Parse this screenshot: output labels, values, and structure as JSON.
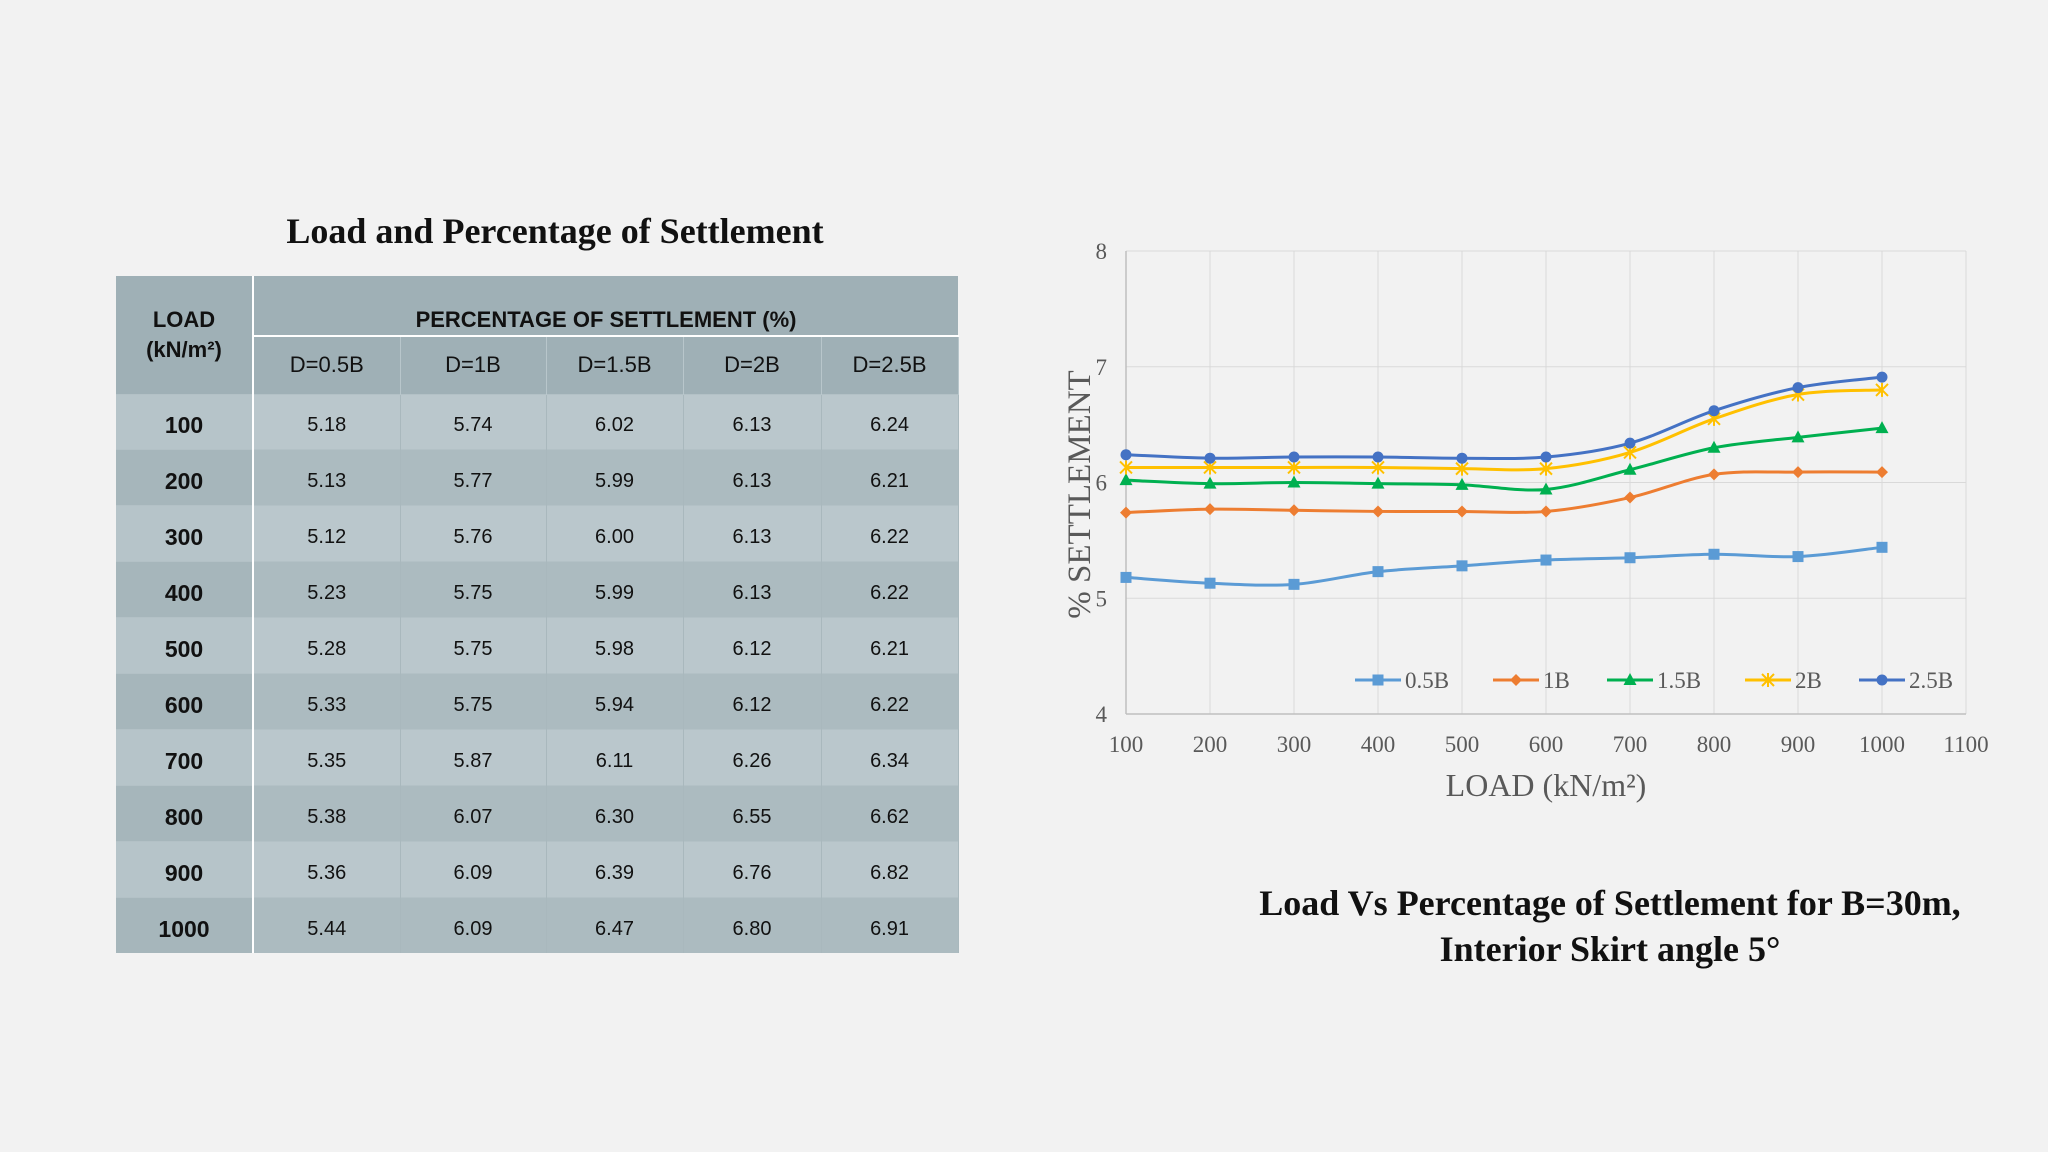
{
  "table": {
    "title": "Load and Percentage of Settlement",
    "load_header_line1": "LOAD",
    "load_header_line2": "(kN/m²)",
    "group_header": "PERCENTAGE OF SETTLEMENT (%)",
    "columns": [
      "D=0.5B",
      "D=1B",
      "D=1.5B",
      "D=2B",
      "D=2.5B"
    ],
    "rows": [
      {
        "load": "100",
        "values": [
          "5.18",
          "5.74",
          "6.02",
          "6.13",
          "6.24"
        ]
      },
      {
        "load": "200",
        "values": [
          "5.13",
          "5.77",
          "5.99",
          "6.13",
          "6.21"
        ]
      },
      {
        "load": "300",
        "values": [
          "5.12",
          "5.76",
          "6.00",
          "6.13",
          "6.22"
        ]
      },
      {
        "load": "400",
        "values": [
          "5.23",
          "5.75",
          "5.99",
          "6.13",
          "6.22"
        ]
      },
      {
        "load": "500",
        "values": [
          "5.28",
          "5.75",
          "5.98",
          "6.12",
          "6.21"
        ]
      },
      {
        "load": "600",
        "values": [
          "5.33",
          "5.75",
          "5.94",
          "6.12",
          "6.22"
        ]
      },
      {
        "load": "700",
        "values": [
          "5.35",
          "5.87",
          "6.11",
          "6.26",
          "6.34"
        ]
      },
      {
        "load": "800",
        "values": [
          "5.38",
          "6.07",
          "6.30",
          "6.55",
          "6.62"
        ]
      },
      {
        "load": "900",
        "values": [
          "5.36",
          "6.09",
          "6.39",
          "6.76",
          "6.82"
        ]
      },
      {
        "load": "1000",
        "values": [
          "5.44",
          "6.09",
          "6.47",
          "6.80",
          "6.91"
        ]
      }
    ]
  },
  "chart_caption_line1": "Load Vs Percentage of Settlement for B=30m,",
  "chart_caption_line2": "Interior Skirt angle 5°",
  "chart_data": {
    "type": "line",
    "xlabel": "LOAD (kN/m²)",
    "ylabel": "% SETTLEMENT",
    "xlim": [
      100,
      1100
    ],
    "ylim": [
      4,
      8
    ],
    "x_ticks": [
      "100",
      "200",
      "300",
      "400",
      "500",
      "600",
      "700",
      "800",
      "900",
      "1000",
      "1100"
    ],
    "y_ticks": [
      "4",
      "5",
      "6",
      "7",
      "8"
    ],
    "grid": true,
    "legend_position": "bottom-inside",
    "x": [
      100,
      200,
      300,
      400,
      500,
      600,
      700,
      800,
      900,
      1000
    ],
    "series": [
      {
        "name": "0.5B",
        "color": "#5b9bd5",
        "marker": "square",
        "values": [
          5.18,
          5.13,
          5.12,
          5.23,
          5.28,
          5.33,
          5.35,
          5.38,
          5.36,
          5.44
        ]
      },
      {
        "name": "1B",
        "color": "#ed7d31",
        "marker": "diamond",
        "values": [
          5.74,
          5.77,
          5.76,
          5.75,
          5.75,
          5.75,
          5.87,
          6.07,
          6.09,
          6.09
        ]
      },
      {
        "name": "1.5B",
        "color": "#00b050",
        "marker": "triangle",
        "values": [
          6.02,
          5.99,
          6.0,
          5.99,
          5.98,
          5.94,
          6.11,
          6.3,
          6.39,
          6.47
        ]
      },
      {
        "name": "2B",
        "color": "#ffc000",
        "marker": "star",
        "values": [
          6.13,
          6.13,
          6.13,
          6.13,
          6.12,
          6.12,
          6.26,
          6.55,
          6.76,
          6.8
        ]
      },
      {
        "name": "2.5B",
        "color": "#4472c4",
        "marker": "circle",
        "values": [
          6.24,
          6.21,
          6.22,
          6.22,
          6.21,
          6.22,
          6.34,
          6.62,
          6.82,
          6.91
        ]
      }
    ]
  }
}
